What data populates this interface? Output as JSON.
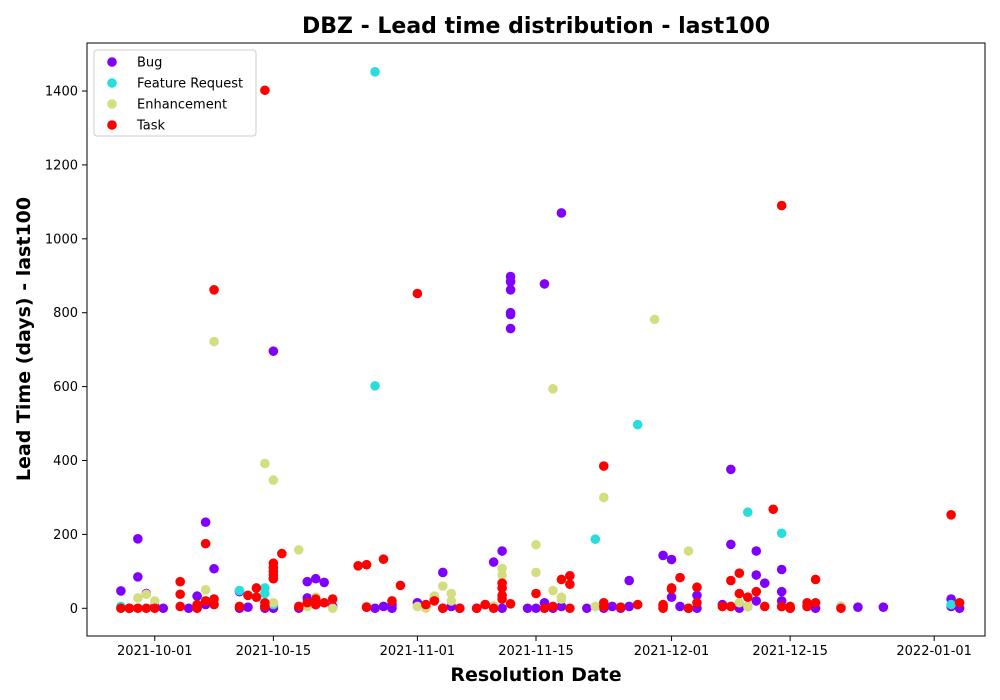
{
  "chart_data": {
    "type": "scatter",
    "title": "DBZ - Lead time distribution - last100",
    "xlabel": "Resolution Date",
    "ylabel": "Lead Time (days) - last100",
    "xlim": [
      "2021-09-23",
      "2022-01-07"
    ],
    "ylim": [
      -75,
      1530
    ],
    "x_ticks": [
      "2021-10-01",
      "2021-10-15",
      "2021-11-01",
      "2021-11-15",
      "2021-12-01",
      "2021-12-15",
      "2022-01-01"
    ],
    "y_ticks": [
      0,
      200,
      400,
      600,
      800,
      1000,
      1200,
      1400
    ],
    "grid": false,
    "legend_position": "top-left",
    "series": [
      {
        "name": "Bug",
        "color": "#8000ff",
        "points": [
          [
            "2021-09-27",
            47
          ],
          [
            "2021-09-28",
            0
          ],
          [
            "2021-09-29",
            188
          ],
          [
            "2021-09-29",
            85
          ],
          [
            "2021-09-30",
            40
          ],
          [
            "2021-10-01",
            5
          ],
          [
            "2021-10-02",
            0
          ],
          [
            "2021-10-05",
            0
          ],
          [
            "2021-10-06",
            33
          ],
          [
            "2021-10-06",
            3
          ],
          [
            "2021-10-07",
            233
          ],
          [
            "2021-10-07",
            10
          ],
          [
            "2021-10-08",
            107
          ],
          [
            "2021-10-11",
            45
          ],
          [
            "2021-10-11",
            0
          ],
          [
            "2021-10-12",
            3
          ],
          [
            "2021-10-14",
            0
          ],
          [
            "2021-10-14",
            5
          ],
          [
            "2021-10-15",
            0
          ],
          [
            "2021-10-15",
            80
          ],
          [
            "2021-10-15",
            696
          ],
          [
            "2021-10-15",
            5
          ],
          [
            "2021-10-18",
            0
          ],
          [
            "2021-10-19",
            72
          ],
          [
            "2021-10-19",
            28
          ],
          [
            "2021-10-20",
            80
          ],
          [
            "2021-10-20",
            10
          ],
          [
            "2021-10-21",
            70
          ],
          [
            "2021-10-22",
            5
          ],
          [
            "2021-10-26",
            3
          ],
          [
            "2021-10-27",
            0
          ],
          [
            "2021-10-28",
            5
          ],
          [
            "2021-10-29",
            10
          ],
          [
            "2021-10-29",
            0
          ],
          [
            "2021-11-01",
            15
          ],
          [
            "2021-11-02",
            3
          ],
          [
            "2021-11-03",
            25
          ],
          [
            "2021-11-04",
            0
          ],
          [
            "2021-11-04",
            97
          ],
          [
            "2021-11-05",
            5
          ],
          [
            "2021-11-06",
            0
          ],
          [
            "2021-11-08",
            0
          ],
          [
            "2021-11-09",
            10
          ],
          [
            "2021-11-10",
            125
          ],
          [
            "2021-11-10",
            5
          ],
          [
            "2021-11-11",
            155
          ],
          [
            "2021-11-11",
            0
          ],
          [
            "2021-11-12",
            898
          ],
          [
            "2021-11-12",
            884
          ],
          [
            "2021-11-12",
            862
          ],
          [
            "2021-11-12",
            800
          ],
          [
            "2021-11-12",
            795
          ],
          [
            "2021-11-12",
            757
          ],
          [
            "2021-11-14",
            0
          ],
          [
            "2021-11-15",
            0
          ],
          [
            "2021-11-16",
            878
          ],
          [
            "2021-11-16",
            15
          ],
          [
            "2021-11-17",
            0
          ],
          [
            "2021-11-18",
            1070
          ],
          [
            "2021-11-18",
            5
          ],
          [
            "2021-11-21",
            0
          ],
          [
            "2021-11-23",
            0
          ],
          [
            "2021-11-24",
            5
          ],
          [
            "2021-11-25",
            0
          ],
          [
            "2021-11-26",
            75
          ],
          [
            "2021-11-26",
            5
          ],
          [
            "2021-11-30",
            143
          ],
          [
            "2021-11-30",
            5
          ],
          [
            "2021-12-01",
            132
          ],
          [
            "2021-12-01",
            30
          ],
          [
            "2021-12-02",
            5
          ],
          [
            "2021-12-03",
            0
          ],
          [
            "2021-12-04",
            35
          ],
          [
            "2021-12-04",
            0
          ],
          [
            "2021-12-07",
            10
          ],
          [
            "2021-12-08",
            376
          ],
          [
            "2021-12-08",
            173
          ],
          [
            "2021-12-09",
            0
          ],
          [
            "2021-12-10",
            5
          ],
          [
            "2021-12-11",
            155
          ],
          [
            "2021-12-11",
            90
          ],
          [
            "2021-12-11",
            20
          ],
          [
            "2021-12-12",
            68
          ],
          [
            "2021-12-14",
            105
          ],
          [
            "2021-12-14",
            45
          ],
          [
            "2021-12-14",
            20
          ],
          [
            "2021-12-14",
            5
          ],
          [
            "2021-12-15",
            0
          ],
          [
            "2021-12-17",
            5
          ],
          [
            "2021-12-18",
            0
          ],
          [
            "2021-12-21",
            5
          ],
          [
            "2021-12-23",
            3
          ],
          [
            "2021-12-26",
            3
          ],
          [
            "2022-01-03",
            25
          ],
          [
            "2022-01-03",
            5
          ],
          [
            "2022-01-04",
            0
          ]
        ]
      },
      {
        "name": "Feature Request",
        "color": "#2adddd",
        "points": [
          [
            "2021-09-27",
            5
          ],
          [
            "2021-10-11",
            48
          ],
          [
            "2021-10-14",
            55
          ],
          [
            "2021-10-14",
            40
          ],
          [
            "2021-10-15",
            10
          ],
          [
            "2021-10-27",
            1452
          ],
          [
            "2021-10-27",
            602
          ],
          [
            "2021-11-22",
            187
          ],
          [
            "2021-11-27",
            497
          ],
          [
            "2021-12-10",
            260
          ],
          [
            "2021-12-14",
            203
          ],
          [
            "2022-01-03",
            10
          ]
        ]
      },
      {
        "name": "Enhancement",
        "color": "#d4dd80",
        "points": [
          [
            "2021-09-29",
            28
          ],
          [
            "2021-09-30",
            38
          ],
          [
            "2021-10-01",
            20
          ],
          [
            "2021-10-07",
            50
          ],
          [
            "2021-10-08",
            722
          ],
          [
            "2021-10-14",
            392
          ],
          [
            "2021-10-15",
            347
          ],
          [
            "2021-10-15",
            15
          ],
          [
            "2021-10-18",
            158
          ],
          [
            "2021-10-19",
            5
          ],
          [
            "2021-10-20",
            30
          ],
          [
            "2021-10-22",
            0
          ],
          [
            "2021-10-26",
            5
          ],
          [
            "2021-11-01",
            5
          ],
          [
            "2021-11-02",
            0
          ],
          [
            "2021-11-03",
            33
          ],
          [
            "2021-11-04",
            60
          ],
          [
            "2021-11-05",
            40
          ],
          [
            "2021-11-05",
            20
          ],
          [
            "2021-11-10",
            5
          ],
          [
            "2021-11-11",
            108
          ],
          [
            "2021-11-11",
            90
          ],
          [
            "2021-11-15",
            172
          ],
          [
            "2021-11-15",
            97
          ],
          [
            "2021-11-17",
            594
          ],
          [
            "2021-11-17",
            48
          ],
          [
            "2021-11-18",
            25
          ],
          [
            "2021-11-18",
            30
          ],
          [
            "2021-11-22",
            5
          ],
          [
            "2021-11-23",
            300
          ],
          [
            "2021-11-29",
            782
          ],
          [
            "2021-12-03",
            155
          ],
          [
            "2021-12-09",
            15
          ],
          [
            "2021-12-10",
            5
          ],
          [
            "2021-12-21",
            5
          ]
        ]
      },
      {
        "name": "Task",
        "color": "#ff0000",
        "points": [
          [
            "2021-09-27",
            0
          ],
          [
            "2021-09-28",
            0
          ],
          [
            "2021-09-29",
            0
          ],
          [
            "2021-09-30",
            0
          ],
          [
            "2021-10-01",
            0
          ],
          [
            "2021-10-04",
            72
          ],
          [
            "2021-10-04",
            38
          ],
          [
            "2021-10-04",
            5
          ],
          [
            "2021-10-06",
            10
          ],
          [
            "2021-10-06",
            0
          ],
          [
            "2021-10-07",
            175
          ],
          [
            "2021-10-07",
            20
          ],
          [
            "2021-10-08",
            862
          ],
          [
            "2021-10-08",
            25
          ],
          [
            "2021-10-08",
            10
          ],
          [
            "2021-10-11",
            5
          ],
          [
            "2021-10-12",
            35
          ],
          [
            "2021-10-13",
            30
          ],
          [
            "2021-10-13",
            55
          ],
          [
            "2021-10-14",
            1402
          ],
          [
            "2021-10-14",
            15
          ],
          [
            "2021-10-14",
            5
          ],
          [
            "2021-10-15",
            122
          ],
          [
            "2021-10-15",
            110
          ],
          [
            "2021-10-15",
            100
          ],
          [
            "2021-10-15",
            90
          ],
          [
            "2021-10-15",
            80
          ],
          [
            "2021-10-16",
            148
          ],
          [
            "2021-10-18",
            5
          ],
          [
            "2021-10-19",
            15
          ],
          [
            "2021-10-20",
            25
          ],
          [
            "2021-10-20",
            10
          ],
          [
            "2021-10-21",
            15
          ],
          [
            "2021-10-22",
            25
          ],
          [
            "2021-10-25",
            115
          ],
          [
            "2021-10-26",
            118
          ],
          [
            "2021-10-26",
            3
          ],
          [
            "2021-10-28",
            133
          ],
          [
            "2021-10-29",
            20
          ],
          [
            "2021-10-30",
            62
          ],
          [
            "2021-11-01",
            852
          ],
          [
            "2021-11-02",
            10
          ],
          [
            "2021-11-03",
            20
          ],
          [
            "2021-11-04",
            0
          ],
          [
            "2021-11-06",
            0
          ],
          [
            "2021-11-08",
            0
          ],
          [
            "2021-11-09",
            10
          ],
          [
            "2021-11-10",
            0
          ],
          [
            "2021-11-11",
            68
          ],
          [
            "2021-11-11",
            55
          ],
          [
            "2021-11-11",
            35
          ],
          [
            "2021-11-11",
            25
          ],
          [
            "2021-11-12",
            12
          ],
          [
            "2021-11-15",
            40
          ],
          [
            "2021-11-16",
            0
          ],
          [
            "2021-11-17",
            5
          ],
          [
            "2021-11-18",
            78
          ],
          [
            "2021-11-19",
            88
          ],
          [
            "2021-11-19",
            65
          ],
          [
            "2021-11-19",
            0
          ],
          [
            "2021-11-23",
            385
          ],
          [
            "2021-11-23",
            15
          ],
          [
            "2021-11-23",
            5
          ],
          [
            "2021-11-25",
            3
          ],
          [
            "2021-11-27",
            10
          ],
          [
            "2021-11-30",
            0
          ],
          [
            "2021-11-30",
            10
          ],
          [
            "2021-12-01",
            52
          ],
          [
            "2021-12-01",
            55
          ],
          [
            "2021-12-02",
            83
          ],
          [
            "2021-12-03",
            0
          ],
          [
            "2021-12-04",
            57
          ],
          [
            "2021-12-04",
            15
          ],
          [
            "2021-12-07",
            5
          ],
          [
            "2021-12-08",
            75
          ],
          [
            "2021-12-08",
            5
          ],
          [
            "2021-12-09",
            95
          ],
          [
            "2021-12-09",
            40
          ],
          [
            "2021-12-10",
            30
          ],
          [
            "2021-12-11",
            45
          ],
          [
            "2021-12-12",
            5
          ],
          [
            "2021-12-13",
            268
          ],
          [
            "2021-12-14",
            1090
          ],
          [
            "2021-12-14",
            5
          ],
          [
            "2021-12-15",
            0
          ],
          [
            "2021-12-15",
            5
          ],
          [
            "2021-12-17",
            15
          ],
          [
            "2021-12-17",
            5
          ],
          [
            "2021-12-18",
            78
          ],
          [
            "2021-12-18",
            15
          ],
          [
            "2021-12-21",
            0
          ],
          [
            "2022-01-03",
            253
          ],
          [
            "2022-01-04",
            15
          ]
        ]
      }
    ]
  }
}
